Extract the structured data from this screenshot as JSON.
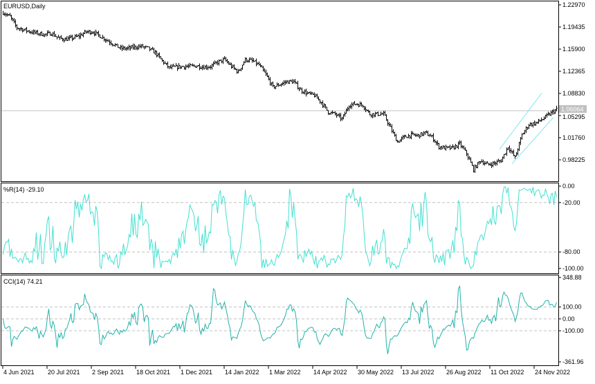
{
  "chart_data": {
    "type": "ohlc",
    "symbol_title": "EURUSD,Daily",
    "timeframe": "Daily",
    "weekly_closes": [
      1.2175,
      1.2109,
      1.1932,
      1.1899,
      1.1866,
      1.1844,
      1.1822,
      1.1844,
      1.1767,
      1.1745,
      1.1767,
      1.18,
      1.1866,
      1.1866,
      1.18,
      1.1734,
      1.1667,
      1.1601,
      1.1601,
      1.1623,
      1.1634,
      1.1601,
      1.1535,
      1.1402,
      1.1292,
      1.1303,
      1.1314,
      1.1314,
      1.1325,
      1.1303,
      1.1314,
      1.138,
      1.1424,
      1.1314,
      1.1225,
      1.1424,
      1.1402,
      1.1336,
      1.1181,
      1.0982,
      1.1026,
      1.1071,
      1.1071,
      1.0938,
      1.0883,
      1.085,
      1.0739,
      1.0585,
      1.0552,
      1.0474,
      1.0695,
      1.0717,
      1.0695,
      1.0552,
      1.0552,
      1.0552,
      1.0331,
      1.011,
      1.0187,
      1.022,
      1.0209,
      1.0253,
      1.0187,
      1.0032,
      1.001,
      1.001,
      1.0077,
      0.9922,
      0.9668,
      0.9811,
      0.9745,
      0.9767,
      0.9811,
      1.0032,
      0.9856,
      1.022,
      1.0386,
      1.0408,
      1.0474,
      1.0552,
      1.0629
    ],
    "current_price": "1.06064",
    "current_price_value": 1.06064,
    "price_axis": {
      "range": [
        0.975,
        1.235
      ],
      "ticks": [
        "1.22970",
        "1.19435",
        "1.15900",
        "1.12365",
        "1.08830",
        "1.05295",
        "1.01760",
        "0.98225"
      ]
    },
    "x_ticks": [
      "4 Jun 2021",
      "20 Jul 2021",
      "2 Sep 2021",
      "18 Oct 2021",
      "1 Dec 2021",
      "14 Jan 2022",
      "1 Mar 2022",
      "14 Apr 2022",
      "30 May 2022",
      "13 Jul 2022",
      "26 Aug 2022",
      "11 Oct 2022",
      "24 Nov 2022"
    ],
    "channel": {
      "upper": [
        [
          0.999,
          1.089
        ]
      ],
      "lower": [
        [
          0.976,
          1.05
        ]
      ]
    },
    "indicators": [
      {
        "id": "wpr",
        "label": "%R(14) -29.10",
        "period": 14,
        "range": [
          -100,
          0
        ],
        "levels": [
          -20,
          -80
        ],
        "ticks": [
          "0.00",
          "-20.00",
          "-80.00",
          "-100.00"
        ],
        "color": "#40E0D0"
      },
      {
        "id": "cci",
        "label": "CCI(14) 74.21",
        "period": 14,
        "range": [
          -361.96,
          348.88
        ],
        "levels": [
          100,
          0,
          -100
        ],
        "ticks": [
          "348.88",
          "100.00",
          "0.00",
          "-100.00",
          "-361.96"
        ],
        "color": "#20B2AA"
      }
    ],
    "colors": {
      "bars": "#000000",
      "channel": "#7FE5F0",
      "grid": "#C0C0C0",
      "price_line": "#C0C0C0"
    }
  }
}
